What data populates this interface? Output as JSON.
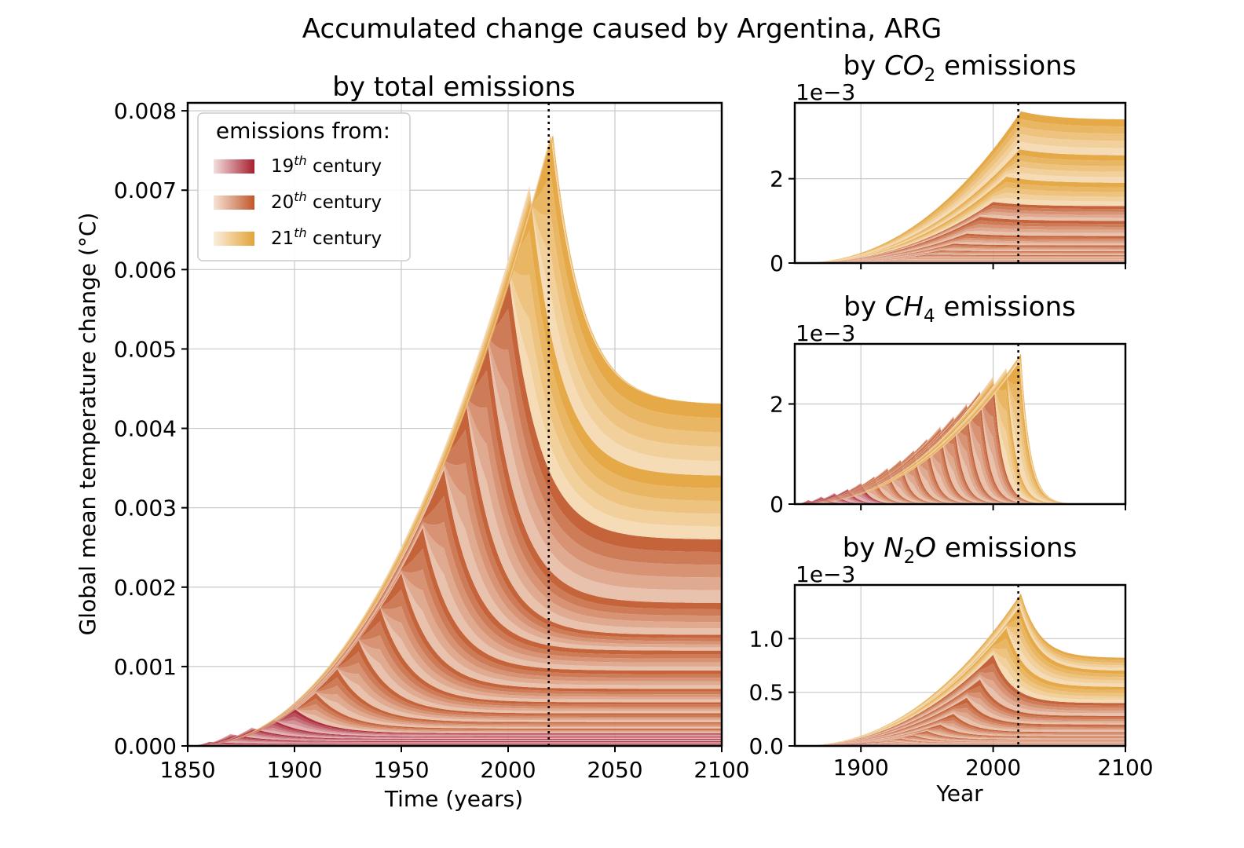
{
  "figure_title": "Accumulated change caused by Argentina, ARG",
  "legend": {
    "title": "emissions from:",
    "entries": [
      {
        "base": "19",
        "sup": "th",
        "rest": " century"
      },
      {
        "base": "20",
        "sup": "th",
        "rest": " century"
      },
      {
        "base": "21",
        "sup": "th",
        "rest": " century"
      }
    ]
  },
  "colors": {
    "c19_start": "#f3dede",
    "c19_end": "#a61f2e",
    "c20_start": "#f6e3d6",
    "c20_end": "#c0572b",
    "c21_start": "#fbeedd",
    "c21_end": "#e3a33a"
  },
  "chart_data": [
    {
      "id": "total",
      "type": "area",
      "title": "by total emissions",
      "xlabel": "Time (years)",
      "ylabel": "Global mean temperature change (°C)",
      "xlim": [
        1850,
        2100
      ],
      "ylim": [
        0,
        0.0081
      ],
      "xticks": [
        "1850",
        "1900",
        "1950",
        "2000",
        "2050",
        "2100"
      ],
      "yticks": [
        "0.000",
        "0.001",
        "0.002",
        "0.003",
        "0.004",
        "0.005",
        "0.006",
        "0.007",
        "0.008"
      ],
      "grid": true,
      "legend_position": "upper-left",
      "present_year_marker": 2019,
      "stacked_decadal_contributions": {
        "decades": [
          1850,
          1860,
          1870,
          1880,
          1890,
          1900,
          1910,
          1920,
          1930,
          1940,
          1950,
          1960,
          1970,
          1980,
          1990,
          2000,
          2010,
          2020
        ],
        "peak_year": [
          1860,
          1870,
          1880,
          1890,
          1900,
          1910,
          1920,
          1930,
          1940,
          1950,
          1960,
          1970,
          1980,
          1990,
          2000,
          2010,
          2020,
          2021
        ],
        "cumulative_peak": [
          5e-05,
          0.00015,
          0.00023,
          0.00033,
          0.00047,
          0.00067,
          0.00097,
          0.00133,
          0.00175,
          0.00218,
          0.00275,
          0.00348,
          0.0044,
          0.0052,
          0.00602,
          0.00705,
          0.0077,
          0.0077
        ],
        "cumulative_2100": [
          3e-05,
          6e-05,
          9e-05,
          0.00012,
          0.00016,
          0.00022,
          0.0003,
          0.00041,
          0.00055,
          0.00072,
          0.00095,
          0.0012,
          0.0014,
          0.0018,
          0.0026,
          0.0034,
          0.0043,
          0.0043
        ]
      }
    },
    {
      "id": "co2",
      "type": "area",
      "title_prefix": "by ",
      "gas": "CO",
      "gas_sub": "2",
      "title_suffix": " emissions",
      "scale_label": "1e−3",
      "xlim": [
        1850,
        2100
      ],
      "ylim": [
        0,
        3.8
      ],
      "yticks": [
        "0",
        "2"
      ],
      "grid": true,
      "present_year_marker": 2019,
      "stacked_decadal_contributions": {
        "decades": [
          1850,
          1860,
          1870,
          1880,
          1890,
          1900,
          1910,
          1920,
          1930,
          1940,
          1950,
          1960,
          1970,
          1980,
          1990,
          2000,
          2010,
          2020
        ],
        "peak_year": [
          1860,
          1870,
          1880,
          1890,
          1900,
          1910,
          1920,
          1930,
          1940,
          1950,
          1960,
          1970,
          1980,
          1990,
          2000,
          2010,
          2020,
          2021
        ],
        "cumulative_peak": [
          0.0,
          0.0,
          0.01,
          0.01,
          0.02,
          0.03,
          0.05,
          0.08,
          0.12,
          0.2,
          0.3,
          0.46,
          0.7,
          1.1,
          1.45,
          2.05,
          2.7,
          3.6
        ],
        "cumulative_2100": [
          0.0,
          0.0,
          0.01,
          0.01,
          0.02,
          0.03,
          0.05,
          0.08,
          0.12,
          0.19,
          0.28,
          0.42,
          0.64,
          1.0,
          1.35,
          1.9,
          2.55,
          3.4
        ]
      }
    },
    {
      "id": "ch4",
      "type": "area",
      "title_prefix": "by ",
      "gas": "CH",
      "gas_sub": "4",
      "title_suffix": " emissions",
      "scale_label": "1e−3",
      "xlim": [
        1850,
        2100
      ],
      "ylim": [
        0,
        3.2
      ],
      "yticks": [
        "0",
        "2"
      ],
      "grid": true,
      "present_year_marker": 2019,
      "stacked_decadal_contributions": {
        "decades": [
          1850,
          1860,
          1870,
          1880,
          1890,
          1900,
          1910,
          1920,
          1930,
          1940,
          1950,
          1960,
          1970,
          1980,
          1990,
          2000,
          2010,
          2020
        ],
        "peak_year": [
          1860,
          1870,
          1880,
          1890,
          1900,
          1910,
          1920,
          1930,
          1940,
          1950,
          1960,
          1970,
          1980,
          1990,
          2000,
          2010,
          2020,
          2021
        ],
        "cumulative_peak": [
          0.08,
          0.15,
          0.22,
          0.3,
          0.42,
          0.55,
          0.72,
          0.88,
          1.07,
          1.3,
          1.55,
          1.75,
          2.0,
          2.25,
          2.55,
          2.72,
          2.85,
          3.0
        ],
        "cumulative_2100": [
          0,
          0,
          0,
          0,
          0,
          0,
          0,
          0,
          0,
          0,
          0,
          0,
          0,
          0,
          0,
          0,
          0,
          0
        ]
      }
    },
    {
      "id": "n2o",
      "type": "area",
      "title_prefix": "by ",
      "gas": "N",
      "gas_sub": "2",
      "gas_after": "O",
      "title_suffix": " emissions",
      "scale_label": "1e−3",
      "xlim": [
        1850,
        2100
      ],
      "ylim": [
        0,
        1.5
      ],
      "xticks": [
        "1900",
        "2000",
        "2100"
      ],
      "yticks": [
        "0.0",
        "0.5",
        "1.0"
      ],
      "xlabel": "Year",
      "grid": true,
      "present_year_marker": 2019,
      "stacked_decadal_contributions": {
        "decades": [
          1850,
          1860,
          1870,
          1880,
          1890,
          1900,
          1910,
          1920,
          1930,
          1940,
          1950,
          1960,
          1970,
          1980,
          1990,
          2000,
          2010,
          2020
        ],
        "peak_year": [
          1860,
          1870,
          1880,
          1890,
          1900,
          1910,
          1920,
          1930,
          1940,
          1950,
          1960,
          1970,
          1980,
          1990,
          2000,
          2010,
          2020,
          2021
        ],
        "cumulative_peak": [
          0.0,
          0.0,
          0.01,
          0.02,
          0.03,
          0.04,
          0.05,
          0.07,
          0.1,
          0.14,
          0.2,
          0.3,
          0.45,
          0.62,
          0.85,
          1.1,
          1.3,
          1.42
        ],
        "cumulative_2100": [
          0.0,
          0.0,
          0.0,
          0.01,
          0.01,
          0.02,
          0.02,
          0.03,
          0.04,
          0.06,
          0.09,
          0.13,
          0.2,
          0.28,
          0.4,
          0.55,
          0.7,
          0.82
        ]
      }
    }
  ]
}
